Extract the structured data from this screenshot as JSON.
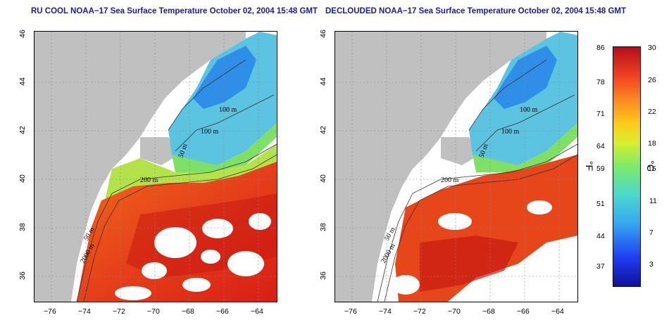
{
  "panels": [
    {
      "title": "RU COOL NOAA−17 Sea Surface Temperature October 02, 2004 15:48 GMT",
      "contour_labels": [
        "100 m",
        "100 m",
        "50 m",
        "200 m",
        "50 m",
        "2000 m"
      ],
      "clouded": true
    },
    {
      "title": "DECLOUDED NOAA−17 Sea Surface Temperature October 02, 2004 15:48 GMT",
      "contour_labels": [
        "100 m",
        "100 m",
        "50 m",
        "200 m",
        "50 m",
        "2000 m"
      ],
      "clouded": false
    }
  ],
  "axes": {
    "x_ticks": [
      "−76",
      "−74",
      "−72",
      "−70",
      "−68",
      "−66",
      "−64"
    ],
    "y_ticks": [
      "46",
      "44",
      "42",
      "40",
      "38",
      "36"
    ],
    "lon_range": [
      -77,
      -63
    ],
    "lat_range": [
      35,
      46
    ]
  },
  "colorbar": {
    "fahrenheit_labels": [
      "86",
      "78",
      "71",
      "64",
      "59",
      "51",
      "44",
      "37"
    ],
    "celsius_labels": [
      "30",
      "26",
      "22",
      "18",
      "15",
      "11",
      "7",
      "3"
    ],
    "fahrenheit_unit": "°F",
    "celsius_unit": "°C",
    "range_c": [
      0,
      30
    ]
  },
  "colors": {
    "land": "#c0c0c0",
    "cold": "#1f6cf0",
    "warm": "#e8391c",
    "title": "#1a1aa8"
  }
}
